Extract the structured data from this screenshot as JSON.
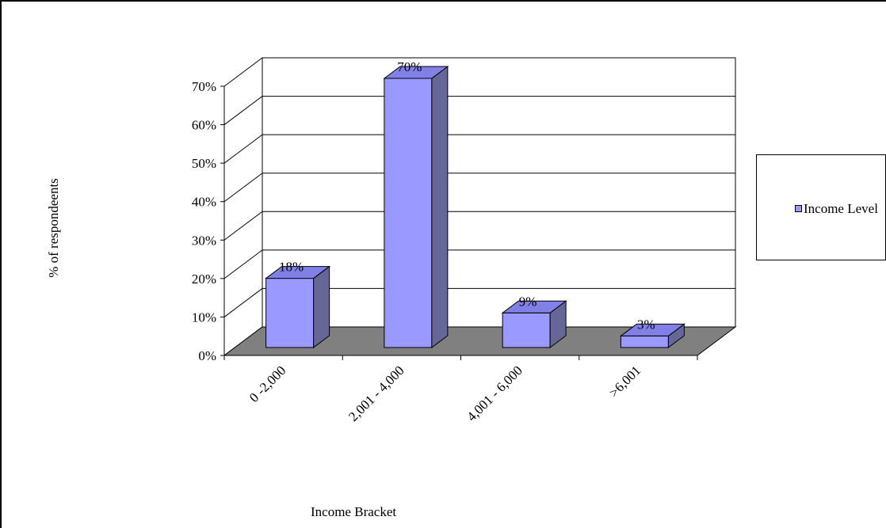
{
  "chart_data": {
    "type": "bar",
    "categories": [
      "0 -2,000",
      "2,001 - 4,000",
      "4,001 - 6,000",
      ">6,001"
    ],
    "series": [
      {
        "name": "Income Level",
        "values": [
          18,
          70,
          9,
          3
        ],
        "data_labels": [
          "18%",
          "70%",
          "9%",
          "3%"
        ]
      }
    ],
    "xlabel": "Income Bracket",
    "ylabel": "% of respondeents",
    "ylim": [
      0,
      70
    ],
    "y_ticks": [
      0,
      10,
      20,
      30,
      40,
      50,
      60,
      70
    ],
    "y_tick_labels": [
      "0%",
      "10%",
      "20%",
      "30%",
      "40%",
      "50%",
      "60%",
      "70%"
    ],
    "grid": true,
    "three_d": true,
    "legend_position": "right",
    "colors": {
      "bar_front": "#9999ff",
      "bar_side": "#666699",
      "bar_top": "#8080e6",
      "floor": "#808080"
    }
  }
}
